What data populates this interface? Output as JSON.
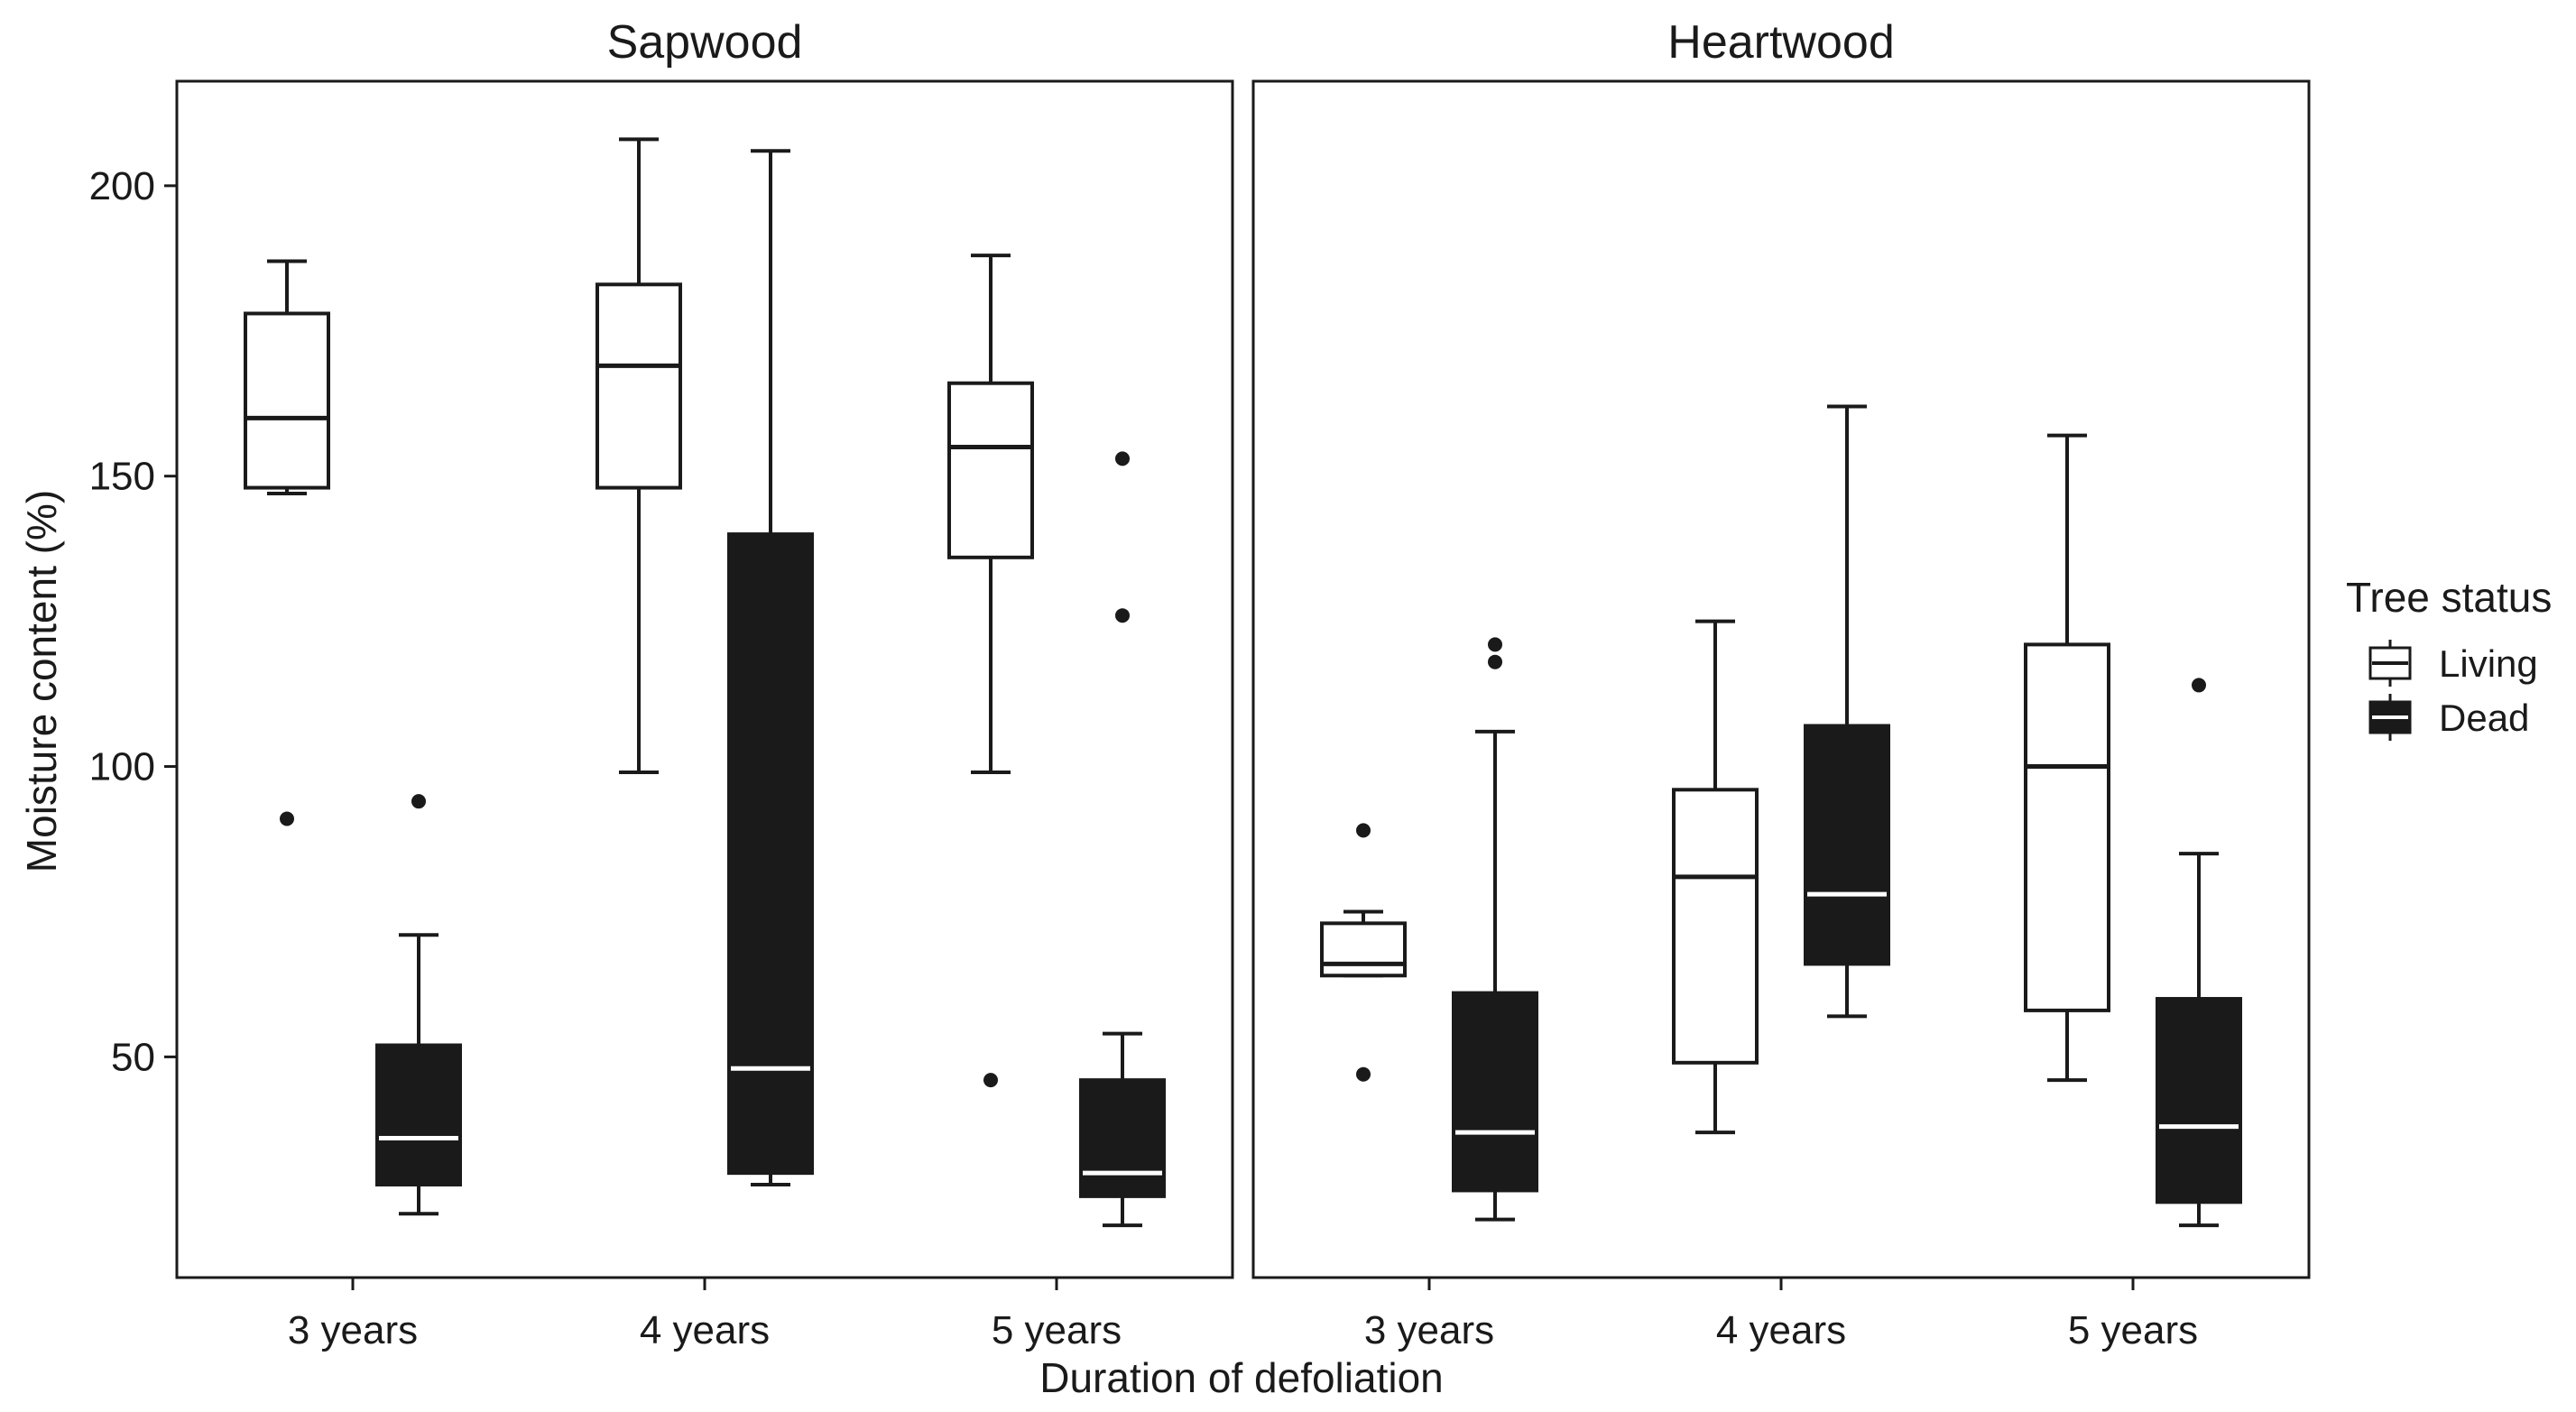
{
  "chart_data": {
    "type": "boxplot",
    "xlabel": "Duration of defoliation",
    "ylabel": "Moisture content (%)",
    "ylim": [
      12,
      218
    ],
    "yticks": [
      50,
      100,
      150,
      200
    ],
    "categories": [
      "3 years",
      "4 years",
      "5 years"
    ],
    "legend": {
      "title": "Tree status",
      "placement": "right",
      "items": [
        {
          "key": "living",
          "label": "Living",
          "fill": "#ffffff",
          "median_color": "#1a1a1a"
        },
        {
          "key": "dead",
          "label": "Dead",
          "fill": "#1a1a1a",
          "median_color": "#ffffff"
        }
      ]
    },
    "facets": [
      {
        "title": "Sapwood",
        "groups": [
          {
            "category": "3 years",
            "status": "living",
            "whisker_low": 147,
            "q1": 148,
            "median": 160,
            "q3": 178,
            "whisker_high": 187,
            "outliers": [
              91
            ]
          },
          {
            "category": "3 years",
            "status": "dead",
            "whisker_low": 23,
            "q1": 28,
            "median": 36,
            "q3": 52,
            "whisker_high": 71,
            "outliers": [
              94
            ]
          },
          {
            "category": "4 years",
            "status": "living",
            "whisker_low": 99,
            "q1": 148,
            "median": 169,
            "q3": 183,
            "whisker_high": 208,
            "outliers": []
          },
          {
            "category": "4 years",
            "status": "dead",
            "whisker_low": 28,
            "q1": 30,
            "median": 48,
            "q3": 140,
            "whisker_high": 206,
            "outliers": []
          },
          {
            "category": "5 years",
            "status": "living",
            "whisker_low": 99,
            "q1": 136,
            "median": 155,
            "q3": 166,
            "whisker_high": 188,
            "outliers": [
              46
            ]
          },
          {
            "category": "5 years",
            "status": "dead",
            "whisker_low": 21,
            "q1": 26,
            "median": 30,
            "q3": 46,
            "whisker_high": 54,
            "outliers": [
              126,
              153
            ]
          }
        ]
      },
      {
        "title": "Heartwood",
        "groups": [
          {
            "category": "3 years",
            "status": "living",
            "whisker_low": 64,
            "q1": 64,
            "median": 66,
            "q3": 73,
            "whisker_high": 75,
            "outliers": [
              89,
              47
            ]
          },
          {
            "category": "3 years",
            "status": "dead",
            "whisker_low": 22,
            "q1": 27,
            "median": 37,
            "q3": 61,
            "whisker_high": 106,
            "outliers": [
              118,
              121
            ]
          },
          {
            "category": "4 years",
            "status": "living",
            "whisker_low": 37,
            "q1": 49,
            "median": 81,
            "q3": 96,
            "whisker_high": 125,
            "outliers": []
          },
          {
            "category": "4 years",
            "status": "dead",
            "whisker_low": 57,
            "q1": 66,
            "median": 78,
            "q3": 107,
            "whisker_high": 162,
            "outliers": []
          },
          {
            "category": "5 years",
            "status": "living",
            "whisker_low": 46,
            "q1": 58,
            "median": 100,
            "q3": 121,
            "whisker_high": 157,
            "outliers": []
          },
          {
            "category": "5 years",
            "status": "dead",
            "whisker_low": 21,
            "q1": 25,
            "median": 38,
            "q3": 60,
            "whisker_high": 85,
            "outliers": [
              114
            ]
          }
        ]
      }
    ]
  }
}
